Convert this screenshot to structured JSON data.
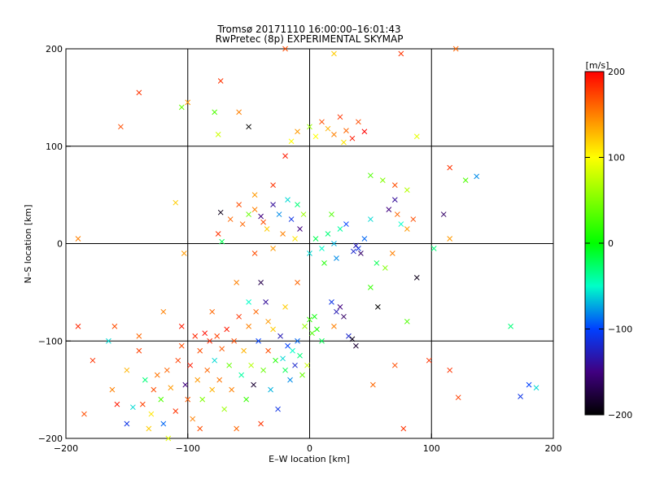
{
  "chart_data": {
    "type": "scatter",
    "title": "Tromsø 20171110 16:00:00–16:01:43",
    "subtitle": "RwPretec (8p) EXPERIMENTAL SKYMAP",
    "xlabel": "E–W location [km]",
    "ylabel": "N–S location [km]",
    "xlim": [
      -200,
      200
    ],
    "ylim": [
      -200,
      200
    ],
    "xticks": [
      "−200",
      "−100",
      "0",
      "100",
      "200"
    ],
    "yticks": [
      "−200",
      "−100",
      "0",
      "100",
      "200"
    ],
    "grid": true,
    "colorbar": {
      "label": "[m/s]",
      "range": [
        -200,
        200
      ],
      "ticks": [
        "200",
        "100",
        "0",
        "−100",
        "−200"
      ]
    },
    "points": [
      {
        "x": -185,
        "y": -175,
        "v": 170,
        "m": "x"
      },
      {
        "x": -178,
        "y": -120,
        "v": 180,
        "m": "x"
      },
      {
        "x": -162,
        "y": -150,
        "v": 150,
        "m": "x"
      },
      {
        "x": -158,
        "y": -165,
        "v": 190,
        "m": "x"
      },
      {
        "x": -150,
        "y": -185,
        "v": -110,
        "m": "x"
      },
      {
        "x": -145,
        "y": -168,
        "v": -60,
        "m": "x"
      },
      {
        "x": -140,
        "y": -95,
        "v": 160,
        "m": "x"
      },
      {
        "x": -137,
        "y": -165,
        "v": 175,
        "m": "x"
      },
      {
        "x": -135,
        "y": -140,
        "v": -30,
        "m": "x"
      },
      {
        "x": -130,
        "y": -175,
        "v": 110,
        "m": "x"
      },
      {
        "x": -128,
        "y": -150,
        "v": 170,
        "m": "x"
      },
      {
        "x": -125,
        "y": -135,
        "v": 155,
        "m": "x"
      },
      {
        "x": -122,
        "y": -160,
        "v": 30,
        "m": "x"
      },
      {
        "x": -120,
        "y": -185,
        "v": -90,
        "m": "x"
      },
      {
        "x": -117,
        "y": -130,
        "v": 160,
        "m": "x"
      },
      {
        "x": -114,
        "y": -148,
        "v": 140,
        "m": "x"
      },
      {
        "x": -110,
        "y": -172,
        "v": 180,
        "m": "x"
      },
      {
        "x": -108,
        "y": -120,
        "v": 175,
        "m": "x"
      },
      {
        "x": -105,
        "y": -105,
        "v": 170,
        "m": "x"
      },
      {
        "x": -102,
        "y": -145,
        "v": -150,
        "m": "x"
      },
      {
        "x": -100,
        "y": -160,
        "v": 165,
        "m": "x"
      },
      {
        "x": -98,
        "y": -125,
        "v": 190,
        "m": "x"
      },
      {
        "x": -96,
        "y": -180,
        "v": 150,
        "m": "x"
      },
      {
        "x": -94,
        "y": -95,
        "v": 185,
        "m": "x"
      },
      {
        "x": -92,
        "y": -140,
        "v": 140,
        "m": "x"
      },
      {
        "x": -90,
        "y": -110,
        "v": 170,
        "m": "x"
      },
      {
        "x": -88,
        "y": -160,
        "v": 50,
        "m": "x"
      },
      {
        "x": -86,
        "y": -92,
        "v": 195,
        "m": "x"
      },
      {
        "x": -84,
        "y": -130,
        "v": 160,
        "m": "x"
      },
      {
        "x": -82,
        "y": -100,
        "v": 185,
        "m": "x"
      },
      {
        "x": -80,
        "y": -150,
        "v": 130,
        "m": "x"
      },
      {
        "x": -78,
        "y": -120,
        "v": -60,
        "m": "x"
      },
      {
        "x": -76,
        "y": -95,
        "v": 175,
        "m": "x"
      },
      {
        "x": -74,
        "y": -140,
        "v": 155,
        "m": "x"
      },
      {
        "x": -72,
        "y": -108,
        "v": 165,
        "m": "x"
      },
      {
        "x": -70,
        "y": -170,
        "v": 60,
        "m": "x"
      },
      {
        "x": -68,
        "y": -88,
        "v": 190,
        "m": "x"
      },
      {
        "x": -66,
        "y": -125,
        "v": 40,
        "m": "x"
      },
      {
        "x": -64,
        "y": -150,
        "v": 150,
        "m": "x"
      },
      {
        "x": -62,
        "y": -100,
        "v": 170,
        "m": "x"
      },
      {
        "x": -60,
        "y": -190,
        "v": 160,
        "m": "x"
      },
      {
        "x": -58,
        "y": -75,
        "v": 180,
        "m": "x"
      },
      {
        "x": -56,
        "y": -135,
        "v": -40,
        "m": "x"
      },
      {
        "x": -54,
        "y": -110,
        "v": 130,
        "m": "x"
      },
      {
        "x": -52,
        "y": -160,
        "v": 20,
        "m": "x"
      },
      {
        "x": -50,
        "y": -85,
        "v": 150,
        "m": "x"
      },
      {
        "x": -48,
        "y": -125,
        "v": 70,
        "m": "x"
      },
      {
        "x": -46,
        "y": -145,
        "v": -180,
        "m": "x"
      },
      {
        "x": -44,
        "y": -70,
        "v": 160,
        "m": "x"
      },
      {
        "x": -42,
        "y": -100,
        "v": -100,
        "m": "x"
      },
      {
        "x": -40,
        "y": -185,
        "v": 180,
        "m": "x"
      },
      {
        "x": -38,
        "y": -130,
        "v": 40,
        "m": "x"
      },
      {
        "x": -36,
        "y": -60,
        "v": -140,
        "m": "x"
      },
      {
        "x": -34,
        "y": -110,
        "v": 170,
        "m": "x"
      },
      {
        "x": -32,
        "y": -150,
        "v": -70,
        "m": "x"
      },
      {
        "x": -30,
        "y": -88,
        "v": 120,
        "m": "x"
      },
      {
        "x": -28,
        "y": -120,
        "v": 10,
        "m": "x"
      },
      {
        "x": -26,
        "y": -170,
        "v": -110,
        "m": "x"
      },
      {
        "x": -24,
        "y": -95,
        "v": -130,
        "m": "x"
      },
      {
        "x": -22,
        "y": -118,
        "v": -60,
        "m": "x"
      },
      {
        "x": -20,
        "y": -130,
        "v": -20,
        "m": "x"
      },
      {
        "x": -18,
        "y": -105,
        "v": -100,
        "m": "x"
      },
      {
        "x": -16,
        "y": -140,
        "v": -80,
        "m": "x"
      },
      {
        "x": -14,
        "y": -110,
        "v": -50,
        "m": "x"
      },
      {
        "x": -12,
        "y": -125,
        "v": -120,
        "m": "x"
      },
      {
        "x": -10,
        "y": -100,
        "v": -90,
        "m": "x"
      },
      {
        "x": -8,
        "y": -115,
        "v": -30,
        "m": "x"
      },
      {
        "x": -6,
        "y": -135,
        "v": 40,
        "m": "x"
      },
      {
        "x": -4,
        "y": -85,
        "v": 60,
        "m": "x"
      },
      {
        "x": -2,
        "y": -125,
        "v": 80,
        "m": "x"
      },
      {
        "x": 0,
        "y": -78,
        "v": 20,
        "m": "x"
      },
      {
        "x": 2,
        "y": -92,
        "v": 30,
        "m": "x"
      },
      {
        "x": 4,
        "y": -75,
        "v": 0,
        "m": "x"
      },
      {
        "x": 6,
        "y": -88,
        "v": 10,
        "m": "x"
      },
      {
        "x": 10,
        "y": -100,
        "v": -20,
        "m": "x"
      },
      {
        "x": 18,
        "y": -60,
        "v": -110,
        "m": "x"
      },
      {
        "x": 22,
        "y": -70,
        "v": -130,
        "m": "x"
      },
      {
        "x": 25,
        "y": -65,
        "v": -150,
        "m": "x"
      },
      {
        "x": 28,
        "y": -75,
        "v": -160,
        "m": "x"
      },
      {
        "x": 32,
        "y": -95,
        "v": -120,
        "m": "x"
      },
      {
        "x": 35,
        "y": -98,
        "v": -190,
        "m": "x"
      },
      {
        "x": 38,
        "y": -105,
        "v": -180,
        "m": "x"
      },
      {
        "x": 20,
        "y": -85,
        "v": 150,
        "m": "x"
      },
      {
        "x": 50,
        "y": -45,
        "v": 20,
        "m": "x"
      },
      {
        "x": 56,
        "y": -65,
        "v": -200,
        "m": "x"
      },
      {
        "x": 70,
        "y": -125,
        "v": 170,
        "m": "x"
      },
      {
        "x": 80,
        "y": -80,
        "v": 30,
        "m": "x"
      },
      {
        "x": 88,
        "y": -35,
        "v": -190,
        "m": "x"
      },
      {
        "x": 98,
        "y": -120,
        "v": 180,
        "m": "x"
      },
      {
        "x": 115,
        "y": -130,
        "v": 180,
        "m": "x"
      },
      {
        "x": 122,
        "y": -158,
        "v": 175,
        "m": "x"
      },
      {
        "x": 165,
        "y": -85,
        "v": -30,
        "m": "x"
      },
      {
        "x": 173,
        "y": -157,
        "v": -110,
        "m": "x"
      },
      {
        "x": 180,
        "y": -145,
        "v": -100,
        "m": "x"
      },
      {
        "x": 186,
        "y": -148,
        "v": -60,
        "m": "x"
      },
      {
        "x": -150,
        "y": -130,
        "v": 130,
        "m": "x"
      },
      {
        "x": -140,
        "y": -110,
        "v": 175,
        "m": "x"
      },
      {
        "x": -132,
        "y": -190,
        "v": 120,
        "m": "x"
      },
      {
        "x": -116,
        "y": -200,
        "v": 90,
        "m": "x"
      },
      {
        "x": -90,
        "y": -190,
        "v": 170,
        "m": "x"
      },
      {
        "x": -160,
        "y": -85,
        "v": 170,
        "m": "x"
      },
      {
        "x": -165,
        "y": -100,
        "v": -60,
        "m": "x"
      },
      {
        "x": -190,
        "y": -85,
        "v": 185,
        "m": "x"
      },
      {
        "x": -120,
        "y": -70,
        "v": 150,
        "m": "x"
      },
      {
        "x": -105,
        "y": -85,
        "v": 190,
        "m": "x"
      },
      {
        "x": -80,
        "y": -70,
        "v": 160,
        "m": "x"
      },
      {
        "x": -60,
        "y": -40,
        "v": 150,
        "m": "x"
      },
      {
        "x": -50,
        "y": -60,
        "v": -50,
        "m": "x"
      },
      {
        "x": -40,
        "y": -40,
        "v": -170,
        "m": "x"
      },
      {
        "x": -34,
        "y": -80,
        "v": 140,
        "m": "x"
      },
      {
        "x": -10,
        "y": -40,
        "v": 160,
        "m": "x"
      },
      {
        "x": -20,
        "y": -65,
        "v": 120,
        "m": "x"
      },
      {
        "x": -110,
        "y": 42,
        "v": 120,
        "m": "x"
      },
      {
        "x": -100,
        "y": 145,
        "v": 140,
        "m": "x"
      },
      {
        "x": -105,
        "y": 140,
        "v": 40,
        "m": "x"
      },
      {
        "x": -78,
        "y": 135,
        "v": 30,
        "m": "x"
      },
      {
        "x": -75,
        "y": 112,
        "v": 80,
        "m": "x"
      },
      {
        "x": -73,
        "y": 167,
        "v": 180,
        "m": "x"
      },
      {
        "x": -58,
        "y": 135,
        "v": 150,
        "m": "x"
      },
      {
        "x": -50,
        "y": 120,
        "v": -200,
        "m": "x"
      },
      {
        "x": -103,
        "y": -10,
        "v": 140,
        "m": "x"
      },
      {
        "x": -75,
        "y": 10,
        "v": 180,
        "m": "x"
      },
      {
        "x": -73,
        "y": 32,
        "v": -190,
        "m": "x"
      },
      {
        "x": -55,
        "y": 20,
        "v": 160,
        "m": "x"
      },
      {
        "x": -50,
        "y": 30,
        "v": 40,
        "m": "x"
      },
      {
        "x": -45,
        "y": 35,
        "v": 150,
        "m": "x"
      },
      {
        "x": -40,
        "y": 28,
        "v": -150,
        "m": "x"
      },
      {
        "x": -38,
        "y": 22,
        "v": 170,
        "m": "x"
      },
      {
        "x": -35,
        "y": 15,
        "v": 120,
        "m": "x"
      },
      {
        "x": -30,
        "y": 40,
        "v": -140,
        "m": "x"
      },
      {
        "x": -25,
        "y": 30,
        "v": -80,
        "m": "x"
      },
      {
        "x": -22,
        "y": 10,
        "v": 150,
        "m": "x"
      },
      {
        "x": -18,
        "y": 45,
        "v": -60,
        "m": "x"
      },
      {
        "x": -15,
        "y": 25,
        "v": -110,
        "m": "x"
      },
      {
        "x": -12,
        "y": 5,
        "v": 110,
        "m": "x"
      },
      {
        "x": -10,
        "y": 40,
        "v": -30,
        "m": "x"
      },
      {
        "x": -8,
        "y": 15,
        "v": -150,
        "m": "x"
      },
      {
        "x": -5,
        "y": 30,
        "v": 60,
        "m": "x"
      },
      {
        "x": -30,
        "y": 60,
        "v": 180,
        "m": "x"
      },
      {
        "x": -45,
        "y": 50,
        "v": 140,
        "m": "x"
      },
      {
        "x": -58,
        "y": 40,
        "v": 170,
        "m": "x"
      },
      {
        "x": -65,
        "y": 25,
        "v": 160,
        "m": "x"
      },
      {
        "x": -72,
        "y": 2,
        "v": -20,
        "m": "x"
      },
      {
        "x": -20,
        "y": 90,
        "v": 190,
        "m": "x"
      },
      {
        "x": -10,
        "y": 115,
        "v": 140,
        "m": "x"
      },
      {
        "x": 0,
        "y": 120,
        "v": 60,
        "m": "x"
      },
      {
        "x": 5,
        "y": 110,
        "v": 100,
        "m": "x"
      },
      {
        "x": 10,
        "y": 125,
        "v": 170,
        "m": "x"
      },
      {
        "x": 15,
        "y": 118,
        "v": 130,
        "m": "x"
      },
      {
        "x": 20,
        "y": 112,
        "v": 150,
        "m": "x"
      },
      {
        "x": 25,
        "y": 130,
        "v": 180,
        "m": "x"
      },
      {
        "x": 30,
        "y": 116,
        "v": 160,
        "m": "x"
      },
      {
        "x": 35,
        "y": 108,
        "v": 190,
        "m": "x"
      },
      {
        "x": 40,
        "y": 125,
        "v": 170,
        "m": "x"
      },
      {
        "x": 45,
        "y": 115,
        "v": 200,
        "m": "x"
      },
      {
        "x": 28,
        "y": 104,
        "v": 110,
        "m": "x"
      },
      {
        "x": -15,
        "y": 105,
        "v": 100,
        "m": "x"
      },
      {
        "x": 50,
        "y": 70,
        "v": 30,
        "m": "x"
      },
      {
        "x": 60,
        "y": 65,
        "v": 50,
        "m": "x"
      },
      {
        "x": 70,
        "y": 60,
        "v": 170,
        "m": "x"
      },
      {
        "x": 80,
        "y": 55,
        "v": 70,
        "m": "x"
      },
      {
        "x": 88,
        "y": 110,
        "v": 90,
        "m": "x"
      },
      {
        "x": 115,
        "y": 78,
        "v": 180,
        "m": "x"
      },
      {
        "x": 128,
        "y": 65,
        "v": 30,
        "m": "x"
      },
      {
        "x": 137,
        "y": 69,
        "v": -80,
        "m": "x"
      },
      {
        "x": 110,
        "y": 30,
        "v": -160,
        "m": "x"
      },
      {
        "x": 115,
        "y": 5,
        "v": 140,
        "m": "x"
      },
      {
        "x": 102,
        "y": -5,
        "v": -30,
        "m": "x"
      },
      {
        "x": 75,
        "y": 20,
        "v": -50,
        "m": "x"
      },
      {
        "x": 80,
        "y": 15,
        "v": 140,
        "m": "x"
      },
      {
        "x": 65,
        "y": 35,
        "v": -150,
        "m": "x"
      },
      {
        "x": 70,
        "y": 45,
        "v": -140,
        "m": "x"
      },
      {
        "x": 72,
        "y": 30,
        "v": 160,
        "m": "x"
      },
      {
        "x": 85,
        "y": 25,
        "v": 170,
        "m": "x"
      },
      {
        "x": 50,
        "y": 25,
        "v": -60,
        "m": "x"
      },
      {
        "x": 40,
        "y": -5,
        "v": -110,
        "m": "x"
      },
      {
        "x": 36,
        "y": -8,
        "v": -120,
        "m": "x"
      },
      {
        "x": 42,
        "y": -10,
        "v": -160,
        "m": "x"
      },
      {
        "x": 38,
        "y": -2,
        "v": -130,
        "m": "x"
      },
      {
        "x": 45,
        "y": 5,
        "v": -90,
        "m": "x"
      },
      {
        "x": 55,
        "y": -20,
        "v": -20,
        "m": "x"
      },
      {
        "x": 62,
        "y": -25,
        "v": 50,
        "m": "x"
      },
      {
        "x": 68,
        "y": -10,
        "v": 150,
        "m": "x"
      },
      {
        "x": 20,
        "y": 0,
        "v": -70,
        "m": "x"
      },
      {
        "x": 15,
        "y": 10,
        "v": -30,
        "m": "x"
      },
      {
        "x": 10,
        "y": -5,
        "v": -50,
        "m": "x"
      },
      {
        "x": 5,
        "y": 5,
        "v": -20,
        "m": "x"
      },
      {
        "x": 0,
        "y": -10,
        "v": -60,
        "m": "x"
      },
      {
        "x": 25,
        "y": 15,
        "v": -40,
        "m": "x"
      },
      {
        "x": 30,
        "y": 20,
        "v": -100,
        "m": "x"
      },
      {
        "x": 18,
        "y": 30,
        "v": 30,
        "m": "x"
      },
      {
        "x": 22,
        "y": -15,
        "v": -80,
        "m": "x"
      },
      {
        "x": 12,
        "y": -20,
        "v": 10,
        "m": "x"
      },
      {
        "x": -30,
        "y": -5,
        "v": 140,
        "m": "x"
      },
      {
        "x": -45,
        "y": -10,
        "v": 170,
        "m": "x"
      },
      {
        "x": -140,
        "y": 155,
        "v": 180,
        "m": "x"
      },
      {
        "x": -155,
        "y": 120,
        "v": 170,
        "m": "x"
      },
      {
        "x": -190,
        "y": 5,
        "v": 150,
        "m": "x"
      },
      {
        "x": 120,
        "y": 200,
        "v": 160,
        "m": "x"
      },
      {
        "x": 75,
        "y": 195,
        "v": 180,
        "m": "x"
      },
      {
        "x": 77,
        "y": -190,
        "v": 180,
        "m": "x"
      },
      {
        "x": 52,
        "y": -145,
        "v": 160,
        "m": "x"
      },
      {
        "x": -20,
        "y": 200,
        "v": 170,
        "m": "x"
      },
      {
        "x": 20,
        "y": 195,
        "v": 120,
        "m": "x"
      }
    ]
  }
}
